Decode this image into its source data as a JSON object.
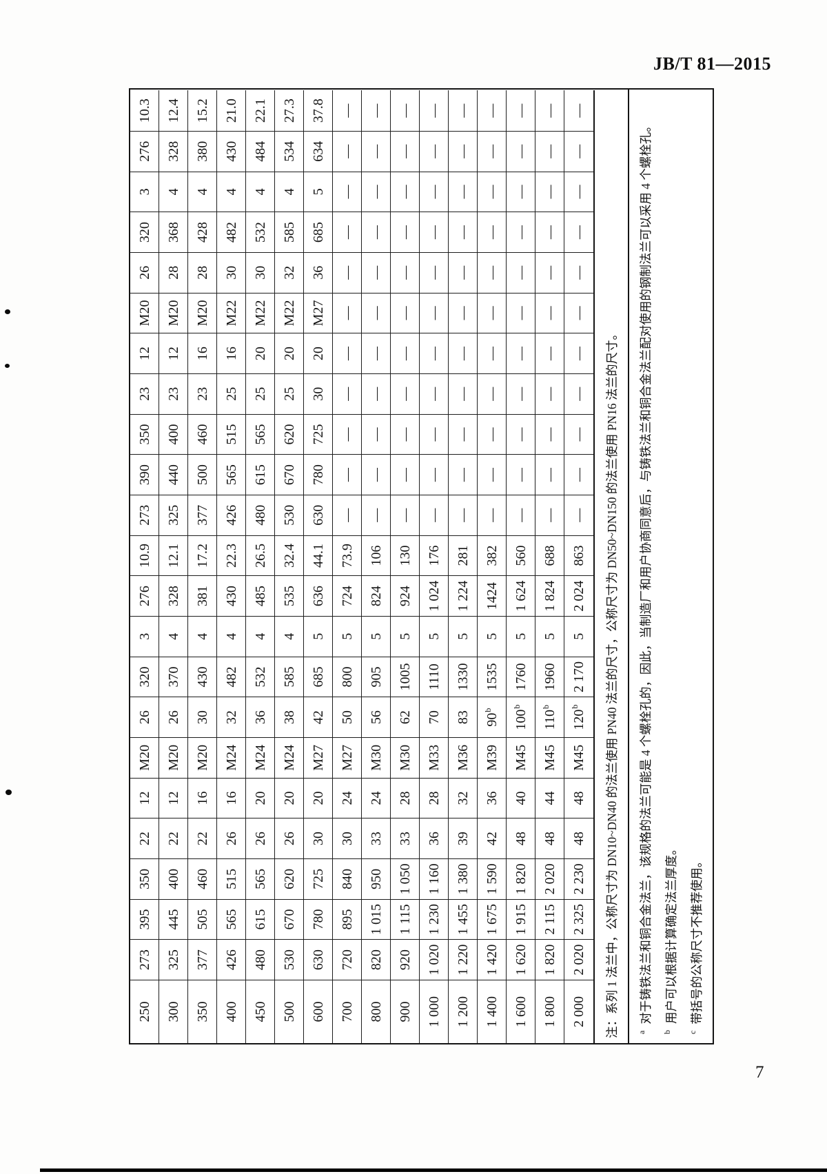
{
  "page": {
    "header_title": "JB/T 81—2015",
    "page_number": "7"
  },
  "chart_data": {
    "type": "table",
    "orientation": "rotated-90-ccw-on-page",
    "rows_are": "nominal sizes DN 250–2000; 23 dimension columns per row (two flange series); dash means not applicable",
    "rows": [
      [
        "250",
        "273",
        "395",
        "350",
        "22",
        "12",
        "M20",
        "26",
        "320",
        "3",
        "276",
        "10.9",
        "273",
        "390",
        "350",
        "23",
        "12",
        "M20",
        "26",
        "320",
        "3",
        "276",
        "10.3"
      ],
      [
        "300",
        "325",
        "445",
        "400",
        "22",
        "12",
        "M20",
        "26",
        "370",
        "4",
        "328",
        "12.1",
        "325",
        "440",
        "400",
        "23",
        "12",
        "M20",
        "28",
        "368",
        "4",
        "328",
        "12.4"
      ],
      [
        "350",
        "377",
        "505",
        "460",
        "22",
        "16",
        "M20",
        "30",
        "430",
        "4",
        "381",
        "17.2",
        "377",
        "500",
        "460",
        "23",
        "16",
        "M20",
        "28",
        "428",
        "4",
        "380",
        "15.2"
      ],
      [
        "400",
        "426",
        "565",
        "515",
        "26",
        "16",
        "M24",
        "32",
        "482",
        "4",
        "430",
        "22.3",
        "426",
        "565",
        "515",
        "25",
        "16",
        "M22",
        "30",
        "482",
        "4",
        "430",
        "21.0"
      ],
      [
        "450",
        "480",
        "615",
        "565",
        "26",
        "20",
        "M24",
        "36",
        "532",
        "4",
        "485",
        "26.5",
        "480",
        "615",
        "565",
        "25",
        "20",
        "M22",
        "30",
        "532",
        "4",
        "484",
        "22.1"
      ],
      [
        "500",
        "530",
        "670",
        "620",
        "26",
        "20",
        "M24",
        "38",
        "585",
        "4",
        "535",
        "32.4",
        "530",
        "670",
        "620",
        "25",
        "20",
        "M22",
        "32",
        "585",
        "4",
        "534",
        "27.3"
      ],
      [
        "600",
        "630",
        "780",
        "725",
        "30",
        "20",
        "M27",
        "42",
        "685",
        "5",
        "636",
        "44.1",
        "630",
        "780",
        "725",
        "30",
        "20",
        "M27",
        "36",
        "685",
        "5",
        "634",
        "37.8"
      ],
      [
        "700",
        "720",
        "895",
        "840",
        "30",
        "24",
        "M27",
        "50",
        "800",
        "5",
        "724",
        "73.9",
        "—",
        "—",
        "—",
        "—",
        "—",
        "—",
        "—",
        "—",
        "—",
        "—",
        "—"
      ],
      [
        "800",
        "820",
        "1 015",
        "950",
        "33",
        "24",
        "M30",
        "56",
        "905",
        "5",
        "824",
        "106",
        "—",
        "—",
        "—",
        "—",
        "—",
        "—",
        "—",
        "—",
        "—",
        "—",
        "—"
      ],
      [
        "900",
        "920",
        "1 115",
        "1 050",
        "33",
        "28",
        "M30",
        "62",
        "1005",
        "5",
        "924",
        "130",
        "—",
        "—",
        "—",
        "—",
        "—",
        "—",
        "—",
        "—",
        "—",
        "—",
        "—"
      ],
      [
        "1 000",
        "1 020",
        "1 230",
        "1 160",
        "36",
        "28",
        "M33",
        "70",
        "1110",
        "5",
        "1 024",
        "176",
        "—",
        "—",
        "—",
        "—",
        "—",
        "—",
        "—",
        "—",
        "—",
        "—",
        "—"
      ],
      [
        "1 200",
        "1 220",
        "1 455",
        "1 380",
        "39",
        "32",
        "M36",
        "83",
        "1330",
        "5",
        "1 224",
        "281",
        "—",
        "—",
        "—",
        "—",
        "—",
        "—",
        "—",
        "—",
        "—",
        "—",
        "—"
      ],
      [
        "1 400",
        "1 420",
        "1 675",
        "1 590",
        "42",
        "36",
        "M39",
        "90^b",
        "1535",
        "5",
        "1424",
        "382",
        "—",
        "—",
        "—",
        "—",
        "—",
        "—",
        "—",
        "—",
        "—",
        "—",
        "—"
      ],
      [
        "1 600",
        "1 620",
        "1 915",
        "1 820",
        "48",
        "40",
        "M45",
        "100^b",
        "1760",
        "5",
        "1 624",
        "560",
        "—",
        "—",
        "—",
        "—",
        "—",
        "—",
        "—",
        "—",
        "—",
        "—",
        "—"
      ],
      [
        "1 800",
        "1 820",
        "2 115",
        "2 020",
        "48",
        "44",
        "M45",
        "110^b",
        "1960",
        "5",
        "1 824",
        "688",
        "—",
        "—",
        "—",
        "—",
        "—",
        "—",
        "—",
        "—",
        "—",
        "—",
        "—"
      ],
      [
        "2 000",
        "2 020",
        "2 325",
        "2 230",
        "48",
        "48",
        "M45",
        "120^b",
        "2 170",
        "5",
        "2 024",
        "863",
        "—",
        "—",
        "—",
        "—",
        "—",
        "—",
        "—",
        "—",
        "—",
        "—",
        "—"
      ]
    ]
  },
  "notes": {
    "note_line": "注：系列 1 法兰中，公称尺寸为 DN10~DN40 的法兰使用 PN40 法兰的尺寸，公称尺寸为 DN50~DN150 的法兰使用 PN16 法兰的尺寸。",
    "footnotes": [
      {
        "mark": "a",
        "text": "对于铸铁法兰和铜合金法兰，该规格的法兰可能是 4 个螺栓孔的，因此，当制造厂和用户协商同意后，与铸铁法兰和铜合金法兰配对使用的钢制法兰可以采用 4 个螺栓孔。"
      },
      {
        "mark": "b",
        "text": "用户可以根据计算确定法兰厚度。"
      },
      {
        "mark": "c",
        "text": "带括号的公称尺寸不推荐使用。"
      }
    ]
  }
}
